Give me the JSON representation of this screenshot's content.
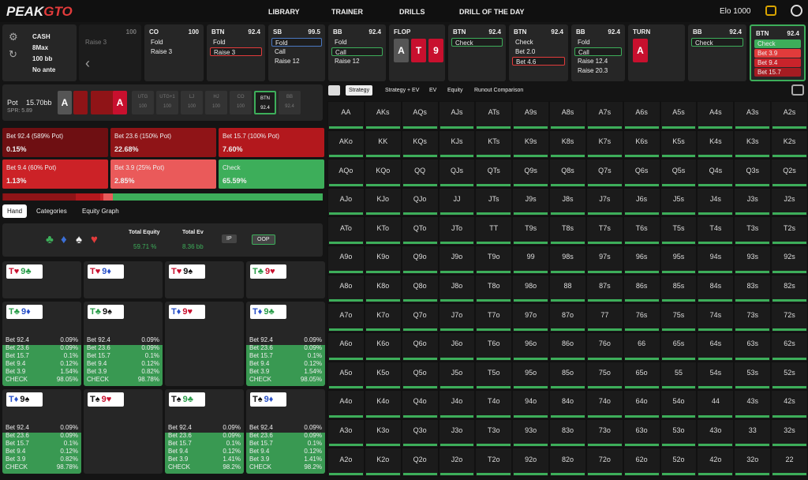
{
  "nav": {
    "logo": [
      "PEAK",
      "GTO"
    ],
    "links": [
      "LIBRARY",
      "TRAINER",
      "DRILLS",
      "DRILL OF THE DAY"
    ],
    "elo": "Elo 1000"
  },
  "game": [
    "CASH",
    "8Max",
    "100 bb",
    "No ante"
  ],
  "actions": [
    {
      "stack": "100",
      "options": [
        "Raise 3"
      ]
    },
    {
      "pos": "CO",
      "stack": "100",
      "options": [
        "Fold",
        "Raise 3"
      ]
    },
    {
      "pos": "BTN",
      "stack": "92.4",
      "options": [
        "Fold",
        "Raise 3"
      ],
      "selected": 1
    },
    {
      "pos": "SB",
      "stack": "99.5",
      "options": [
        "Fold",
        "Call",
        "Raise 12"
      ],
      "selected": 0
    },
    {
      "pos": "BB",
      "stack": "92.4",
      "options": [
        "Fold",
        "Call",
        "Raise 12"
      ],
      "selected": 1
    },
    {
      "pos": "FLOP",
      "cards": [
        "A",
        "T",
        "9"
      ],
      "card_colors": [
        "#555555",
        "#c8102e",
        "#c8102e"
      ]
    },
    {
      "pos": "BTN",
      "stack": "92.4",
      "options": [
        "Check"
      ],
      "selected": 0
    },
    {
      "pos": "BTN",
      "stack": "92.4",
      "options": [
        "Check",
        "Bet 2.0",
        "Bet 4.6"
      ],
      "selected": 2
    },
    {
      "pos": "BB",
      "stack": "92.4",
      "options": [
        "Fold",
        "Call",
        "Raise 12.4",
        "Raise 20.3"
      ],
      "selected": 1
    },
    {
      "pos": "TURN",
      "cards": [
        "A"
      ],
      "card_colors": [
        "#c8102e"
      ]
    },
    {
      "pos": "BB",
      "stack": "92.4",
      "options": [
        "Check"
      ],
      "selected": 0
    },
    {
      "pos": "BTN",
      "stack": "92.4",
      "options": [
        "Check",
        "Bet 3.9",
        "Bet 9.4",
        "Bet 15.7"
      ],
      "option_colors": [
        "#3dae5a",
        "#e23b3b",
        "#c9232b",
        "#a51c22"
      ],
      "active": true
    }
  ],
  "table": {
    "board": [
      "A",
      "A"
    ],
    "pot": "Pot",
    "pot_value": "15.70bb",
    "spr": "SPR: 5.89",
    "seats": [
      [
        "UTG",
        "100"
      ],
      [
        "UTG+1",
        "100"
      ],
      [
        "LJ",
        "100"
      ],
      [
        "HJ",
        "100"
      ],
      [
        "CO",
        "100"
      ],
      [
        "BTN",
        "92.4"
      ],
      [
        "BB",
        "92.4"
      ]
    ],
    "active_seat": 5
  },
  "bets": [
    {
      "label": "Bet 92.4 (589% Pot)",
      "freq": "0.15%",
      "color": "#6e0f12"
    },
    {
      "label": "Bet 23.6 (150% Pot)",
      "freq": "22.68%",
      "color": "#8f1417"
    },
    {
      "label": "Bet 15.7 (100% Pot)",
      "freq": "7.60%",
      "color": "#b3181d"
    },
    {
      "label": "Bet 9.4 (60% Pot)",
      "freq": "1.13%",
      "color": "#cc2227"
    },
    {
      "label": "Bet 3.9 (25% Pot)",
      "freq": "2.85%",
      "color": "#ea5a5a"
    },
    {
      "label": "Check",
      "freq": "65.59%",
      "color": "#3dae5a"
    }
  ],
  "tabs": [
    "Hand",
    "Categories",
    "Equity Graph"
  ],
  "equity": {
    "suits": [
      "♣",
      "♦",
      "♠",
      "♥"
    ],
    "total_equity": "Total Equity",
    "total_equity_value": "59.71 %",
    "total_ev": "Total Ev",
    "total_ev_value": "8.36 bb",
    "buttons": [
      "IP",
      "OOP"
    ]
  },
  "combos": [
    {
      "cards": [
        "T♥",
        "9♣"
      ]
    },
    {
      "cards": [
        "T♥",
        "9♦"
      ]
    },
    {
      "cards": [
        "T♥",
        "9♠"
      ]
    },
    {
      "cards": [
        "T♣",
        "9♥"
      ]
    },
    {
      "cards": [
        "T♣",
        "9♦"
      ],
      "stats": [
        [
          "Bet 92.4",
          "0.09%"
        ],
        [
          "Bet 23.6",
          "0.09%"
        ],
        [
          "Bet 15.7",
          "0.1%"
        ],
        [
          "Bet 9.4",
          "0.12%"
        ],
        [
          "Bet 3.9",
          "1.54%"
        ],
        [
          "CHECK",
          "98.05%"
        ]
      ]
    },
    {
      "cards": [
        "T♣",
        "9♠"
      ],
      "stats": [
        [
          "Bet 92.4",
          "0.09%"
        ],
        [
          "Bet 23.6",
          "0.09%"
        ],
        [
          "Bet 15.7",
          "0.1%"
        ],
        [
          "Bet 9.4",
          "0.12%"
        ],
        [
          "Bet 3.9",
          "0.82%"
        ],
        [
          "CHECK",
          "98.78%"
        ]
      ]
    },
    {
      "cards": [
        "T♦",
        "9♥"
      ]
    },
    {
      "cards": [
        "T♦",
        "9♣"
      ],
      "stats": [
        [
          "Bet 92.4",
          "0.09%"
        ],
        [
          "Bet 23.6",
          "0.09%"
        ],
        [
          "Bet 15.7",
          "0.1%"
        ],
        [
          "Bet 9.4",
          "0.12%"
        ],
        [
          "Bet 3.9",
          "1.54%"
        ],
        [
          "CHECK",
          "98.05%"
        ]
      ]
    },
    {
      "cards": [
        "T♦",
        "9♠"
      ],
      "stats": [
        [
          "Bet 92.4",
          "0.09%"
        ],
        [
          "Bet 23.6",
          "0.09%"
        ],
        [
          "Bet 15.7",
          "0.1%"
        ],
        [
          "Bet 9.4",
          "0.12%"
        ],
        [
          "Bet 3.9",
          "0.82%"
        ],
        [
          "CHECK",
          "98.78%"
        ]
      ]
    },
    {
      "cards": [
        "T♠",
        "9♥"
      ]
    },
    {
      "cards": [
        "T♠",
        "9♣"
      ],
      "stats": [
        [
          "Bet 92.4",
          "0.09%"
        ],
        [
          "Bet 23.6",
          "0.09%"
        ],
        [
          "Bet 15.7",
          "0.1%"
        ],
        [
          "Bet 9.4",
          "0.12%"
        ],
        [
          "Bet 3.9",
          "1.41%"
        ],
        [
          "CHECK",
          "98.2%"
        ]
      ]
    },
    {
      "cards": [
        "T♠",
        "9♦"
      ],
      "stats": [
        [
          "Bet 92.4",
          "0.09%"
        ],
        [
          "Bet 23.6",
          "0.09%"
        ],
        [
          "Bet 15.7",
          "0.1%"
        ],
        [
          "Bet 9.4",
          "0.12%"
        ],
        [
          "Bet 3.9",
          "1.41%"
        ],
        [
          "CHECK",
          "98.2%"
        ]
      ]
    }
  ],
  "grid_tabs": [
    "Strategy",
    "Strategy + EV",
    "EV",
    "Equity",
    "Runout Comparison"
  ],
  "grid": [
    [
      "AA",
      "AKs",
      "AQs",
      "AJs",
      "ATs",
      "A9s",
      "A8s",
      "A7s",
      "A6s",
      "A5s",
      "A4s",
      "A3s",
      "A2s"
    ],
    [
      "AKo",
      "KK",
      "KQs",
      "KJs",
      "KTs",
      "K9s",
      "K8s",
      "K7s",
      "K6s",
      "K5s",
      "K4s",
      "K3s",
      "K2s"
    ],
    [
      "AQo",
      "KQo",
      "QQ",
      "QJs",
      "QTs",
      "Q9s",
      "Q8s",
      "Q7s",
      "Q6s",
      "Q5s",
      "Q4s",
      "Q3s",
      "Q2s"
    ],
    [
      "AJo",
      "KJo",
      "QJo",
      "JJ",
      "JTs",
      "J9s",
      "J8s",
      "J7s",
      "J6s",
      "J5s",
      "J4s",
      "J3s",
      "J2s"
    ],
    [
      "ATo",
      "KTo",
      "QTo",
      "JTo",
      "TT",
      "T9s",
      "T8s",
      "T7s",
      "T6s",
      "T5s",
      "T4s",
      "T3s",
      "T2s"
    ],
    [
      "A9o",
      "K9o",
      "Q9o",
      "J9o",
      "T9o",
      "99",
      "98s",
      "97s",
      "96s",
      "95s",
      "94s",
      "93s",
      "92s"
    ],
    [
      "A8o",
      "K8o",
      "Q8o",
      "J8o",
      "T8o",
      "98o",
      "88",
      "87s",
      "86s",
      "85s",
      "84s",
      "83s",
      "82s"
    ],
    [
      "A7o",
      "K7o",
      "Q7o",
      "J7o",
      "T7o",
      "97o",
      "87o",
      "77",
      "76s",
      "75s",
      "74s",
      "73s",
      "72s"
    ],
    [
      "A6o",
      "K6o",
      "Q6o",
      "J6o",
      "T6o",
      "96o",
      "86o",
      "76o",
      "66",
      "65s",
      "64s",
      "63s",
      "62s"
    ],
    [
      "A5o",
      "K5o",
      "Q5o",
      "J5o",
      "T5o",
      "95o",
      "85o",
      "75o",
      "65o",
      "55",
      "54s",
      "53s",
      "52s"
    ],
    [
      "A4o",
      "K4o",
      "Q4o",
      "J4o",
      "T4o",
      "94o",
      "84o",
      "74o",
      "64o",
      "54o",
      "44",
      "43s",
      "42s"
    ],
    [
      "A3o",
      "K3o",
      "Q3o",
      "J3o",
      "T3o",
      "93o",
      "83o",
      "73o",
      "63o",
      "53o",
      "43o",
      "33",
      "32s"
    ],
    [
      "A2o",
      "K2o",
      "Q2o",
      "J2o",
      "T2o",
      "92o",
      "82o",
      "72o",
      "62o",
      "52o",
      "42o",
      "32o",
      "22"
    ]
  ]
}
